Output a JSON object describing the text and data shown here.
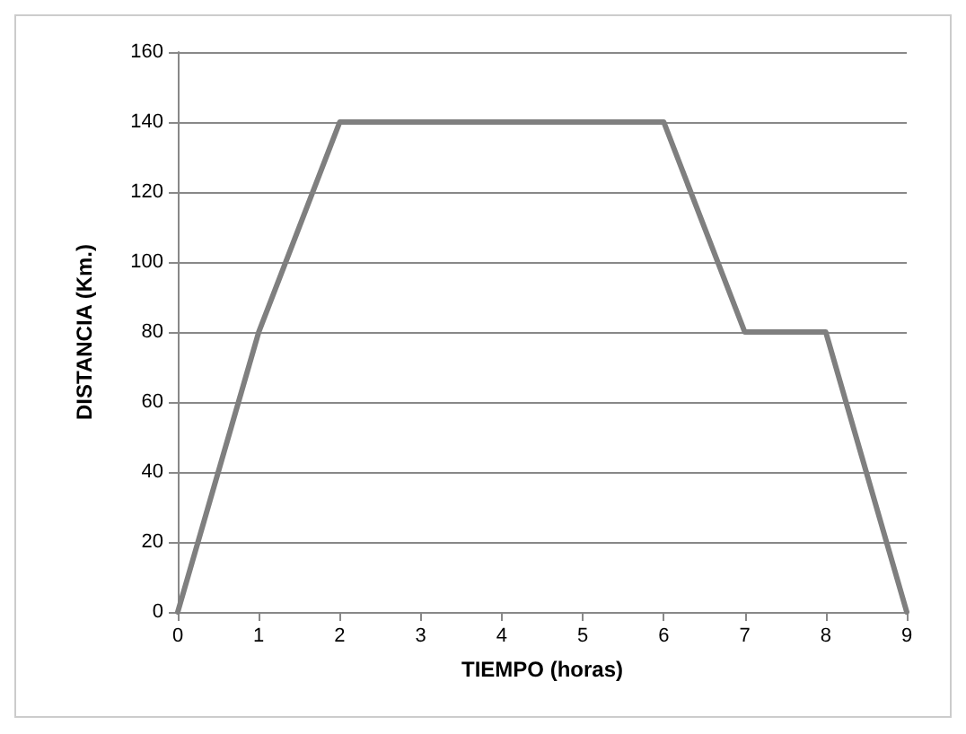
{
  "chart_data": {
    "type": "line",
    "xlabel": "TIEMPO (horas)",
    "ylabel": "DISTANCIA (Km.)",
    "x": [
      0,
      1,
      2,
      3,
      4,
      5,
      6,
      7,
      8,
      9
    ],
    "series": [
      {
        "color": "#7f7f7f",
        "values": [
          0,
          80,
          140,
          140,
          140,
          140,
          140,
          80,
          80,
          0
        ]
      }
    ],
    "xlim": [
      0,
      9
    ],
    "xticks": [
      0,
      1,
      2,
      3,
      4,
      5,
      6,
      7,
      8,
      9
    ],
    "ylim": [
      0,
      160
    ],
    "yticks": [
      0,
      20,
      40,
      60,
      80,
      100,
      120,
      140,
      160
    ],
    "grid": "y",
    "marker": "none",
    "line_style": "solid"
  }
}
